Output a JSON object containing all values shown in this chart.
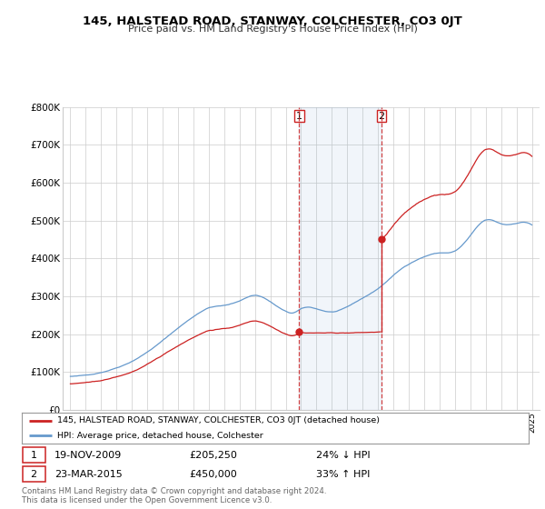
{
  "title": "145, HALSTEAD ROAD, STANWAY, COLCHESTER, CO3 0JT",
  "subtitle": "Price paid vs. HM Land Registry's House Price Index (HPI)",
  "hpi_label": "HPI: Average price, detached house, Colchester",
  "property_label": "145, HALSTEAD ROAD, STANWAY, COLCHESTER, CO3 0JT (detached house)",
  "footer": "Contains HM Land Registry data © Crown copyright and database right 2024.\nThis data is licensed under the Open Government Licence v3.0.",
  "sale1_date": "19-NOV-2009",
  "sale1_price": "£205,250",
  "sale1_hpi": "24% ↓ HPI",
  "sale2_date": "23-MAR-2015",
  "sale2_price": "£450,000",
  "sale2_hpi": "33% ↑ HPI",
  "sale1_x": 2009.88,
  "sale1_y": 205250,
  "sale2_x": 2015.22,
  "sale2_y": 450000,
  "vline1_x": 2009.88,
  "vline2_x": 2015.22,
  "ylim": [
    0,
    800000
  ],
  "xlim": [
    1994.5,
    2025.5
  ],
  "hpi_color": "#6699cc",
  "property_color": "#cc2222",
  "vline_color": "#cc2222",
  "background_color": "#ffffff",
  "grid_color": "#cccccc"
}
